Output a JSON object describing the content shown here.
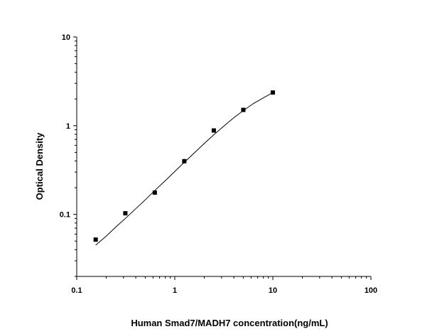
{
  "chart_data": {
    "type": "scatter",
    "title": "",
    "xlabel": "Human Smad7/MADH7 concentration(ng/mL)",
    "ylabel": "Optical Density",
    "x_scale": "log",
    "y_scale": "log",
    "xlim": [
      0.1,
      100
    ],
    "ylim": [
      0.02,
      10
    ],
    "x_ticks": [
      {
        "value": 0.1,
        "label": "0.1"
      },
      {
        "value": 1,
        "label": "1"
      },
      {
        "value": 10,
        "label": "10"
      },
      {
        "value": 100,
        "label": "100"
      }
    ],
    "y_ticks": [
      {
        "value": 0.1,
        "label": "0.1"
      },
      {
        "value": 1,
        "label": "1"
      },
      {
        "value": 10,
        "label": "10"
      }
    ],
    "grid": false,
    "legend": "none",
    "colors": {
      "axis": "#000000",
      "points": "#000000",
      "curve": "#000000"
    },
    "series": [
      {
        "name": "",
        "marker": "square",
        "x": [
          0.156,
          0.313,
          0.625,
          1.25,
          2.5,
          5,
          10
        ],
        "y": [
          0.052,
          0.103,
          0.176,
          0.398,
          0.883,
          1.507,
          2.365
        ]
      }
    ],
    "fit_curve": {
      "x": [
        0.156,
        0.2,
        0.25,
        0.313,
        0.4,
        0.5,
        0.625,
        0.8,
        1,
        1.25,
        1.6,
        2,
        2.5,
        3.2,
        4,
        5,
        6.3,
        8,
        10
      ],
      "y": [
        0.045,
        0.057,
        0.072,
        0.09,
        0.116,
        0.146,
        0.186,
        0.24,
        0.305,
        0.386,
        0.5,
        0.63,
        0.79,
        1.0,
        1.23,
        1.48,
        1.77,
        2.06,
        2.36
      ]
    }
  }
}
